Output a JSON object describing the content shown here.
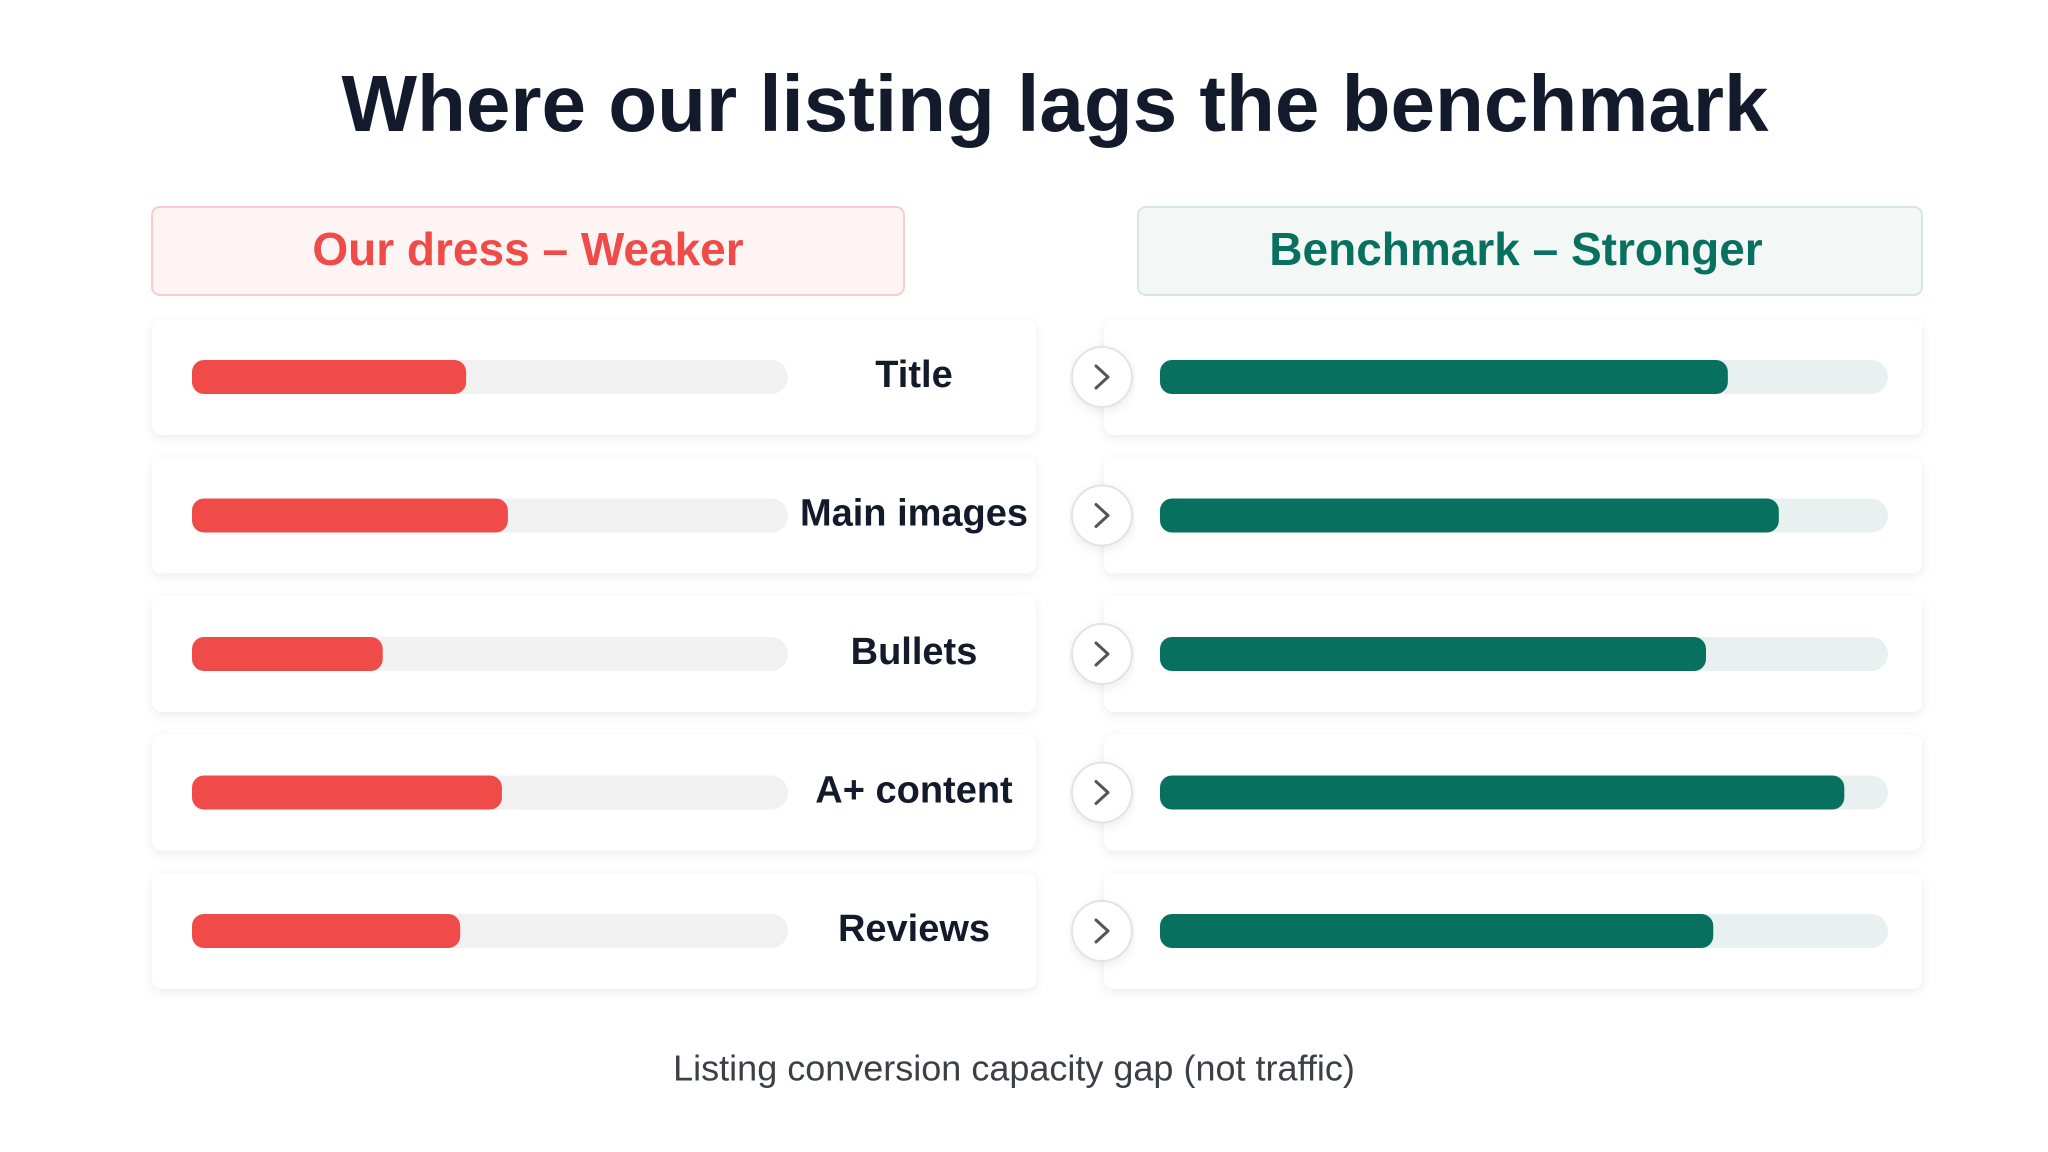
{
  "chart_data": {
    "type": "bar",
    "title": "Where our listing lags the benchmark",
    "categories": [
      "Title",
      "Main images",
      "Bullets",
      "A+ content",
      "Reviews"
    ],
    "series": [
      {
        "name": "Our dress – Weaker",
        "color": "#ef4b48",
        "values": [
          46,
          53,
          32,
          52,
          45
        ]
      },
      {
        "name": "Benchmark – Stronger",
        "color": "#08705f",
        "values": [
          78,
          85,
          75,
          94,
          76
        ]
      }
    ],
    "xlim": [
      0,
      100
    ],
    "caption": "Listing conversion capacity gap (not traffic)"
  }
}
